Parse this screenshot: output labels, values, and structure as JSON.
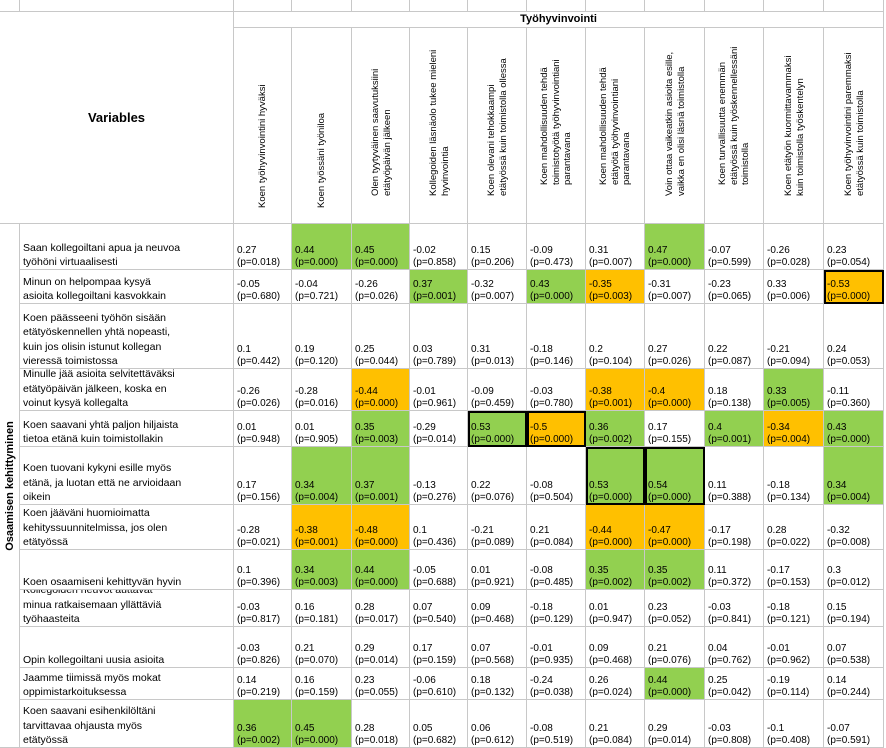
{
  "table": {
    "group_header": "Työhyvinvointi",
    "variables_header": "Variables",
    "side_label": "Osaamisen kehittyminen",
    "columns": [
      "Koen työhyvinvointini hyväksi",
      "Koen työssäni työniloa",
      "Olen tyytyväinen saavutuksiini\netätyöpäivän jälkeen",
      "Kollegoiden läsnäolo tukee mieleni\nhyvinvointia",
      "Koen olevani tehokkaampi\netätyössä kuin toimistolla ollessa",
      "Koen mahdollisuuden tehdä\ntoimistotyötä työhyvinvointiani\nparantavana",
      "Koen mahdollisuuden tehdä\netätyötä työhyvinvointiani\nparantavana",
      "Voin ottaa vaikeatkin asioita esille,\nvaikka en olisi läsnä toimistolla",
      "Koen turvallisuutta enemmän\netätyössä kuin työskennellessäni\ntoimistolla",
      "Koen etätyön kuormittavammaksi\nkuin toimistolla työskentelyn",
      "Koen työhyvinvointini paremmaksi\netätyössä kuin toimistolla"
    ],
    "rows": [
      {
        "label": "Saan kollegoiltani apua ja neuvoa\ntyöhöni virtuaalisesti",
        "cells": [
          {
            "r": "0.27",
            "p": "(p=0.018)"
          },
          {
            "r": "0.44",
            "p": "(p=0.000)",
            "c": "g"
          },
          {
            "r": "0.45",
            "p": "(p=0.000)",
            "c": "g"
          },
          {
            "r": "-0.02",
            "p": "(p=0.858)"
          },
          {
            "r": "0.15",
            "p": "(p=0.206)"
          },
          {
            "r": "-0.09",
            "p": "(p=0.473)"
          },
          {
            "r": "0.31",
            "p": "(p=0.007)"
          },
          {
            "r": "0.47",
            "p": "(p=0.000)",
            "c": "g"
          },
          {
            "r": "-0.07",
            "p": "(p=0.599)"
          },
          {
            "r": "-0.26",
            "p": "(p=0.028)"
          },
          {
            "r": "0.23",
            "p": "(p=0.054)"
          }
        ]
      },
      {
        "label": "Minun on helpompaa kysyä\nasioita kollegoiltani kasvokkain",
        "cells": [
          {
            "r": "-0.05",
            "p": "(p=0.680)"
          },
          {
            "r": "-0.04",
            "p": "(p=0.721)"
          },
          {
            "r": "-0.26",
            "p": "(p=0.026)"
          },
          {
            "r": "0.37",
            "p": "(p=0.001)",
            "c": "g"
          },
          {
            "r": "-0.32",
            "p": "(p=0.007)"
          },
          {
            "r": "0.43",
            "p": "(p=0.000)",
            "c": "g"
          },
          {
            "r": "-0.35",
            "p": "(p=0.003)",
            "c": "o"
          },
          {
            "r": "-0.31",
            "p": "(p=0.007)"
          },
          {
            "r": "-0.23",
            "p": "(p=0.065)"
          },
          {
            "r": "0.33",
            "p": "(p=0.006)"
          },
          {
            "r": "-0.53",
            "p": "(p=0.000)",
            "c": "o",
            "b": 1
          }
        ]
      },
      {
        "label": "Koen päässeeni työhön sisään\netätyöskennellen yhtä nopeasti,\nkuin jos olisin istunut kollegan\nvieressä toimistossa",
        "cells": [
          {
            "r": "0.1",
            "p": "(p=0.442)"
          },
          {
            "r": "0.19",
            "p": "(p=0.120)"
          },
          {
            "r": "0.25",
            "p": "(p=0.044)"
          },
          {
            "r": "0.03",
            "p": "(p=0.789)"
          },
          {
            "r": "0.31",
            "p": "(p=0.013)"
          },
          {
            "r": "-0.18",
            "p": "(p=0.146)"
          },
          {
            "r": "0.2",
            "p": "(p=0.104)"
          },
          {
            "r": "0.27",
            "p": "(p=0.026)"
          },
          {
            "r": "0.22",
            "p": "(p=0.087)"
          },
          {
            "r": "-0.21",
            "p": "(p=0.094)"
          },
          {
            "r": "0.24",
            "p": "(p=0.053)"
          }
        ]
      },
      {
        "label": "Minulle jää asioita selvitettäväksi\netätyöpäivän jälkeen, koska en\nvoinut kysyä kollegalta",
        "cells": [
          {
            "r": "-0.26",
            "p": "(p=0.026)"
          },
          {
            "r": "-0.28",
            "p": "(p=0.016)"
          },
          {
            "r": "-0.44",
            "p": "(p=0.000)",
            "c": "o"
          },
          {
            "r": "-0.01",
            "p": "(p=0.961)"
          },
          {
            "r": "-0.09",
            "p": "(p=0.459)"
          },
          {
            "r": "-0.03",
            "p": "(p=0.780)"
          },
          {
            "r": "-0.38",
            "p": "(p=0.001)",
            "c": "o"
          },
          {
            "r": "-0.4",
            "p": "(p=0.000)",
            "c": "o"
          },
          {
            "r": "0.18",
            "p": "(p=0.138)"
          },
          {
            "r": "0.33",
            "p": "(p=0.005)",
            "c": "g"
          },
          {
            "r": "-0.11",
            "p": "(p=0.360)"
          }
        ]
      },
      {
        "label": "Koen saavani yhtä paljon hiljaista\ntietoa etänä kuin toimistollakin",
        "cells": [
          {
            "r": "0.01",
            "p": "(p=0.948)"
          },
          {
            "r": "0.01",
            "p": "(p=0.905)"
          },
          {
            "r": "0.35",
            "p": "(p=0.003)",
            "c": "g"
          },
          {
            "r": "-0.29",
            "p": "(p=0.014)"
          },
          {
            "r": "0.53",
            "p": "(p=0.000)",
            "c": "g",
            "b": 1
          },
          {
            "r": "-0.5",
            "p": "(p=0.000)",
            "c": "o",
            "b": 1
          },
          {
            "r": "0.36",
            "p": "(p=0.002)",
            "c": "g"
          },
          {
            "r": "0.17",
            "p": "(p=0.155)"
          },
          {
            "r": "0.4",
            "p": "(p=0.001)",
            "c": "g"
          },
          {
            "r": "-0.34",
            "p": "(p=0.004)",
            "c": "o"
          },
          {
            "r": "0.43",
            "p": "(p=0.000)",
            "c": "g"
          }
        ]
      },
      {
        "label": "Koen tuovani kykyni esille myös\netänä, ja luotan että ne arvioidaan\noikein",
        "cells": [
          {
            "r": "0.17",
            "p": "(p=0.156)"
          },
          {
            "r": "0.34",
            "p": "(p=0.004)",
            "c": "g"
          },
          {
            "r": "0.37",
            "p": "(p=0.001)",
            "c": "g"
          },
          {
            "r": "-0.13",
            "p": "(p=0.276)"
          },
          {
            "r": "0.22",
            "p": "(p=0.076)"
          },
          {
            "r": "-0.08",
            "p": "(p=0.504)"
          },
          {
            "r": "0.53",
            "p": "(p=0.000)",
            "c": "g",
            "b": 1
          },
          {
            "r": "0.54",
            "p": "(p=0.000)",
            "c": "g",
            "b": 1
          },
          {
            "r": "0.11",
            "p": "(p=0.388)"
          },
          {
            "r": "-0.18",
            "p": "(p=0.134)"
          },
          {
            "r": "0.34",
            "p": "(p=0.004)",
            "c": "g"
          }
        ]
      },
      {
        "label": "Koen jääväni huomioimatta\nkehityssuunnitelmissa, jos olen\netätyössä",
        "cells": [
          {
            "r": "-0.28",
            "p": "(p=0.021)"
          },
          {
            "r": "-0.38",
            "p": "(p=0.001)",
            "c": "o"
          },
          {
            "r": "-0.48",
            "p": "(p=0.000)",
            "c": "o"
          },
          {
            "r": "0.1",
            "p": "(p=0.436)"
          },
          {
            "r": "-0.21",
            "p": "(p=0.089)"
          },
          {
            "r": "0.21",
            "p": "(p=0.084)"
          },
          {
            "r": "-0.44",
            "p": "(p=0.000)",
            "c": "o"
          },
          {
            "r": "-0.47",
            "p": "(p=0.000)",
            "c": "o"
          },
          {
            "r": "-0.17",
            "p": "(p=0.198)"
          },
          {
            "r": "0.28",
            "p": "(p=0.022)"
          },
          {
            "r": "-0.32",
            "p": "(p=0.008)"
          }
        ]
      },
      {
        "label": "Koen osaamiseni kehittyvän hyvin",
        "cells": [
          {
            "r": "0.1",
            "p": "(p=0.396)"
          },
          {
            "r": "0.34",
            "p": "(p=0.003)",
            "c": "g"
          },
          {
            "r": "0.44",
            "p": "(p=0.000)",
            "c": "g"
          },
          {
            "r": "-0.05",
            "p": "(p=0.688)"
          },
          {
            "r": "0.01",
            "p": "(p=0.921)"
          },
          {
            "r": "-0.08",
            "p": "(p=0.485)"
          },
          {
            "r": "0.35",
            "p": "(p=0.002)",
            "c": "g"
          },
          {
            "r": "0.35",
            "p": "(p=0.002)",
            "c": "g"
          },
          {
            "r": "0.11",
            "p": "(p=0.372)"
          },
          {
            "r": "-0.17",
            "p": "(p=0.153)"
          },
          {
            "r": "0.3",
            "p": "(p=0.012)"
          }
        ]
      },
      {
        "label": "Kollegoiden neuvot auttavat\nminua ratkaisemaan yllättäviä\ntyöhaasteita",
        "cells": [
          {
            "r": "-0.03",
            "p": "(p=0.817)"
          },
          {
            "r": "0.16",
            "p": "(p=0.181)"
          },
          {
            "r": "0.28",
            "p": "(p=0.017)"
          },
          {
            "r": "0.07",
            "p": "(p=0.540)"
          },
          {
            "r": "0.09",
            "p": "(p=0.468)"
          },
          {
            "r": "-0.18",
            "p": "(p=0.129)"
          },
          {
            "r": "0.01",
            "p": "(p=0.947)"
          },
          {
            "r": "0.23",
            "p": "(p=0.052)"
          },
          {
            "r": "-0.03",
            "p": "(p=0.841)"
          },
          {
            "r": "-0.18",
            "p": "(p=0.121)"
          },
          {
            "r": "0.15",
            "p": "(p=0.194)"
          }
        ]
      },
      {
        "label": "Opin kollegoiltani uusia asioita",
        "cells": [
          {
            "r": "-0.03",
            "p": "(p=0.826)"
          },
          {
            "r": "0.21",
            "p": "(p=0.070)"
          },
          {
            "r": "0.29",
            "p": "(p=0.014)"
          },
          {
            "r": "0.17",
            "p": "(p=0.159)"
          },
          {
            "r": "0.07",
            "p": "(p=0.568)"
          },
          {
            "r": "-0.01",
            "p": "(p=0.935)"
          },
          {
            "r": "0.09",
            "p": "(p=0.468)"
          },
          {
            "r": "0.21",
            "p": "(p=0.076)"
          },
          {
            "r": "0.04",
            "p": "(p=0.762)"
          },
          {
            "r": "-0.01",
            "p": "(p=0.962)"
          },
          {
            "r": "0.07",
            "p": "(p=0.538)"
          }
        ]
      },
      {
        "label": "Jaamme tiimissä myös mokat\noppimistarkoituksessa",
        "cells": [
          {
            "r": "0.14",
            "p": "(p=0.219)"
          },
          {
            "r": "0.16",
            "p": "(p=0.159)"
          },
          {
            "r": "0.23",
            "p": "(p=0.055)"
          },
          {
            "r": "-0.06",
            "p": "(p=0.610)"
          },
          {
            "r": "0.18",
            "p": "(p=0.132)"
          },
          {
            "r": "-0.24",
            "p": "(p=0.038)"
          },
          {
            "r": "0.26",
            "p": "(p=0.024)"
          },
          {
            "r": "0.44",
            "p": "(p=0.000)",
            "c": "g"
          },
          {
            "r": "0.25",
            "p": "(p=0.042)"
          },
          {
            "r": "-0.19",
            "p": "(p=0.114)"
          },
          {
            "r": "0.14",
            "p": "(p=0.244)"
          }
        ]
      },
      {
        "label": "Koen saavani esihenkilöltäni\ntarvittavaa ohjausta myös\netätyössä",
        "cells": [
          {
            "r": "0.36",
            "p": "(p=0.002)",
            "c": "g"
          },
          {
            "r": "0.45",
            "p": "(p=0.000)",
            "c": "g"
          },
          {
            "r": "0.28",
            "p": "(p=0.018)"
          },
          {
            "r": "0.05",
            "p": "(p=0.682)"
          },
          {
            "r": "0.06",
            "p": "(p=0.612)"
          },
          {
            "r": "-0.08",
            "p": "(p=0.519)"
          },
          {
            "r": "0.21",
            "p": "(p=0.084)"
          },
          {
            "r": "0.29",
            "p": "(p=0.014)"
          },
          {
            "r": "-0.03",
            "p": "(p=0.808)"
          },
          {
            "r": "-0.1",
            "p": "(p=0.408)"
          },
          {
            "r": "-0.07",
            "p": "(p=0.591)"
          }
        ]
      }
    ]
  }
}
